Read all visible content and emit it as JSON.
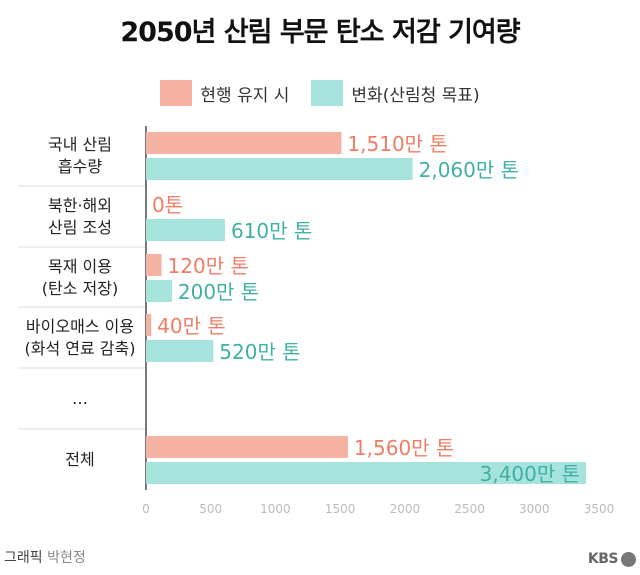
{
  "colors": {
    "current": "#f5b1a2",
    "current_text": "#ef7d66",
    "change": "#a6e3dc",
    "change_text": "#3fb0a4"
  },
  "chart_data": {
    "type": "bar",
    "title": "2050년 산림 부문 탄소 저감 기여량",
    "series": [
      {
        "name": "현행 유지 시",
        "values": [
          1510,
          0,
          120,
          40,
          null,
          1560
        ],
        "labels": [
          "1,510만 톤",
          "0톤",
          "120만 톤",
          "40만 톤",
          "",
          "1,560만 톤"
        ]
      },
      {
        "name": "변화(산림청 목표)",
        "values": [
          2060,
          610,
          200,
          520,
          null,
          3400
        ],
        "labels": [
          "2,060만 톤",
          "610만 톤",
          "200만 톤",
          "520만 톤",
          "",
          "3,400만 톤"
        ]
      }
    ],
    "categories": [
      [
        "국내 산림",
        "흡수량"
      ],
      [
        "북한·해외",
        "산림 조성"
      ],
      [
        "목재 이용",
        "(탄소 저장)"
      ],
      [
        "바이오매스 이용",
        "(화석 연료 감축)"
      ],
      [
        "…"
      ],
      [
        "전체"
      ]
    ],
    "xlim": [
      0,
      3500
    ],
    "xticks": [
      "0",
      "500",
      "1000",
      "1500",
      "2000",
      "2500",
      "3000",
      "3500"
    ],
    "orientation": "horizontal"
  },
  "footer": {
    "credit_label": "그래픽",
    "credit_name": "박현정",
    "logo": "KBS"
  }
}
